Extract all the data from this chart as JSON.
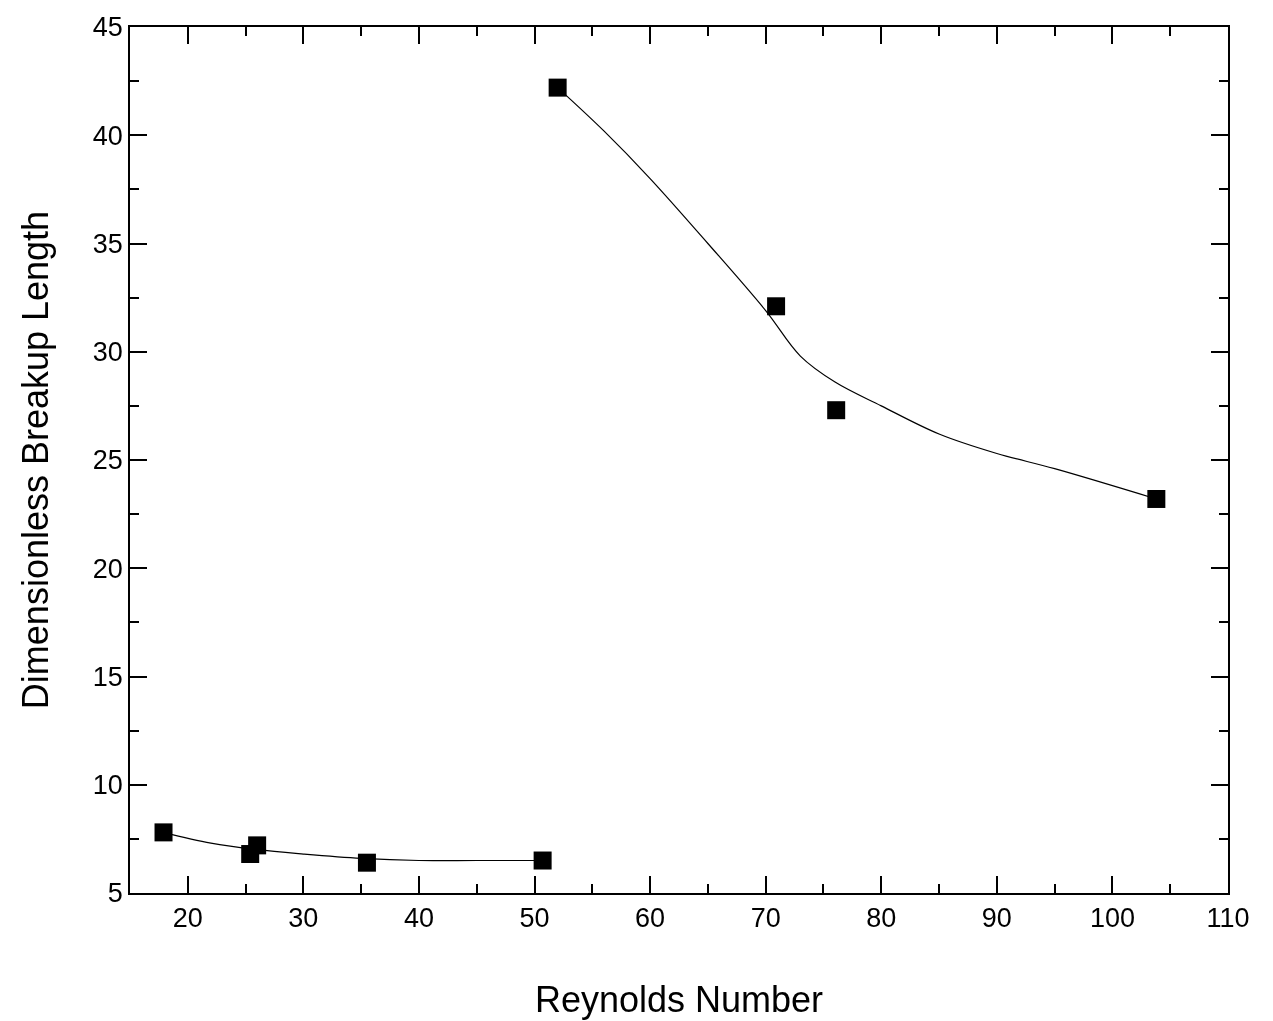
{
  "chart_data": {
    "type": "scatter",
    "xlabel": "Reynolds Number",
    "ylabel": "Dimensionless Breakup Length",
    "xlim": [
      15,
      110
    ],
    "ylim": [
      5,
      45
    ],
    "xticks": [
      20,
      30,
      40,
      50,
      60,
      70,
      80,
      90,
      100,
      110
    ],
    "yticks": [
      5,
      10,
      15,
      20,
      25,
      30,
      35,
      40,
      45
    ],
    "marker": "square",
    "grid": false,
    "series": [
      {
        "color": "#000000",
        "x": [
          17.9,
          25.4,
          26.0,
          35.5,
          50.7,
          52.0,
          70.9,
          76.1,
          103.8
        ],
        "values": [
          7.8,
          6.8,
          7.2,
          6.4,
          6.5,
          42.2,
          32.1,
          27.3,
          23.2
        ]
      },
      {
        "type": "line",
        "marker": "none",
        "color": "#000000",
        "x": [
          17.9,
          22,
          26,
          30,
          35,
          40,
          45,
          50.7
        ],
        "values": [
          7.8,
          7.3,
          7.0,
          6.8,
          6.6,
          6.5,
          6.5,
          6.5
        ]
      },
      {
        "type": "line",
        "marker": "none",
        "color": "#000000",
        "x": [
          52,
          56,
          60,
          65,
          70,
          73,
          76,
          80,
          85,
          90,
          95,
          103.8
        ],
        "values": [
          42.2,
          40.2,
          38.0,
          35.0,
          31.9,
          29.8,
          28.6,
          27.5,
          26.2,
          25.3,
          24.6,
          23.2
        ]
      }
    ]
  }
}
